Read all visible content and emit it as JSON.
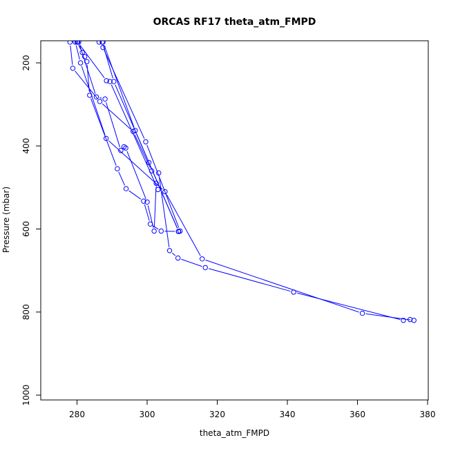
{
  "chart_data": {
    "type": "line",
    "title": "ORCAS RF17 theta_atm_FMPD",
    "xlabel": "theta_atm_FMPD",
    "ylabel": "Pressure (mbar)",
    "xlim": [
      270,
      380
    ],
    "ylim": [
      1000,
      150
    ],
    "y_reversed": true,
    "grid": false,
    "legend": "none",
    "line_color": "#0000ff",
    "marker": "open-circle",
    "x_ticks": [
      280,
      300,
      320,
      340,
      360,
      380
    ],
    "y_ticks": [
      200,
      400,
      600,
      800,
      1000
    ],
    "series": [
      {
        "points": [
          [
            278,
            150
          ],
          [
            278.8,
            213
          ],
          [
            286.5,
            293
          ],
          [
            296,
            365
          ],
          [
            301.3,
            460
          ],
          [
            303.3,
            465
          ],
          [
            306.4,
            652
          ],
          [
            308.8,
            670
          ],
          [
            316.6,
            693
          ],
          [
            341.8,
            752
          ],
          [
            373.1,
            820
          ],
          [
            375.0,
            818
          ],
          [
            376.1,
            820
          ],
          [
            361.4,
            803
          ],
          [
            315.7,
            672
          ],
          [
            305.1,
            510
          ],
          [
            288.3,
            382
          ],
          [
            281.0,
            200
          ],
          [
            279.5,
            150
          ]
        ]
      },
      {
        "points": [
          [
            280,
            150
          ],
          [
            281.5,
            175
          ],
          [
            282.2,
            185
          ],
          [
            282.8,
            197
          ],
          [
            283.6,
            278
          ],
          [
            291.5,
            455
          ],
          [
            294.0,
            503
          ],
          [
            299.0,
            533
          ],
          [
            300.9,
            588
          ],
          [
            304.0,
            605
          ],
          [
            308.9,
            606
          ],
          [
            309.4,
            605
          ],
          [
            299.6,
            390
          ],
          [
            287.4,
            163
          ],
          [
            286.3,
            150
          ]
        ]
      },
      {
        "points": [
          [
            280.5,
            150
          ],
          [
            285.5,
            282
          ],
          [
            288.0,
            287
          ],
          [
            292.5,
            411
          ],
          [
            293.4,
            402
          ],
          [
            293.9,
            405
          ],
          [
            300.0,
            535
          ],
          [
            302.0,
            605
          ],
          [
            302.6,
            490
          ],
          [
            303.1,
            505
          ],
          [
            289.4,
            245
          ],
          [
            288.4,
            243
          ],
          [
            280.2,
            150
          ]
        ]
      },
      {
        "points": [
          [
            287.2,
            150
          ],
          [
            290.5,
            245
          ],
          [
            300.5,
            440
          ],
          [
            309.0,
            606
          ],
          [
            296.6,
            363
          ],
          [
            287.4,
            150
          ]
        ]
      }
    ]
  }
}
